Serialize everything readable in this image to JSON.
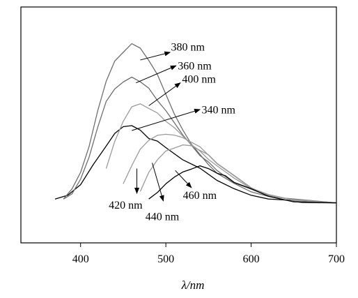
{
  "chart_data": {
    "type": "line",
    "title": "",
    "xlabel": "λ/nm",
    "ylabel": "",
    "xlim": [
      330,
      700
    ],
    "ylim": [
      0,
      1
    ],
    "grid": false,
    "legend": "none",
    "x_ticks": [
      400,
      500,
      600,
      700
    ],
    "colors": {
      "dark": "#000000",
      "mid": "#6e6e6e",
      "light": "#9a9a9a"
    },
    "series": [
      {
        "color": "#000000",
        "points": [
          [
            370,
            0.12
          ],
          [
            385,
            0.14
          ],
          [
            400,
            0.2
          ],
          [
            415,
            0.3
          ],
          [
            430,
            0.4
          ],
          [
            440,
            0.46
          ],
          [
            450,
            0.5
          ],
          [
            460,
            0.51
          ],
          [
            470,
            0.48
          ],
          [
            480,
            0.44
          ],
          [
            490,
            0.42
          ],
          [
            500,
            0.39
          ],
          [
            520,
            0.33
          ],
          [
            540,
            0.28
          ],
          [
            560,
            0.22
          ],
          [
            580,
            0.17
          ],
          [
            600,
            0.14
          ],
          [
            620,
            0.125
          ],
          [
            650,
            0.11
          ],
          [
            700,
            0.1
          ]
        ]
      },
      {
        "color": "#6e6e6e",
        "points": [
          [
            380,
            0.12
          ],
          [
            390,
            0.17
          ],
          [
            400,
            0.26
          ],
          [
            410,
            0.4
          ],
          [
            420,
            0.58
          ],
          [
            430,
            0.74
          ],
          [
            440,
            0.84
          ],
          [
            450,
            0.89
          ],
          [
            460,
            0.94
          ],
          [
            470,
            0.91
          ],
          [
            480,
            0.85
          ],
          [
            490,
            0.77
          ],
          [
            500,
            0.67
          ],
          [
            510,
            0.57
          ],
          [
            520,
            0.48
          ],
          [
            530,
            0.41
          ],
          [
            540,
            0.35
          ],
          [
            550,
            0.3
          ],
          [
            560,
            0.26
          ],
          [
            580,
            0.2
          ],
          [
            600,
            0.16
          ],
          [
            620,
            0.13
          ],
          [
            640,
            0.115
          ],
          [
            660,
            0.105
          ],
          [
            700,
            0.1
          ]
        ]
      },
      {
        "color": "#6e6e6e",
        "points": [
          [
            380,
            0.12
          ],
          [
            390,
            0.15
          ],
          [
            400,
            0.22
          ],
          [
            410,
            0.34
          ],
          [
            420,
            0.5
          ],
          [
            430,
            0.63
          ],
          [
            440,
            0.7
          ],
          [
            450,
            0.73
          ],
          [
            460,
            0.76
          ],
          [
            470,
            0.74
          ],
          [
            480,
            0.7
          ],
          [
            490,
            0.64
          ],
          [
            500,
            0.58
          ],
          [
            510,
            0.52
          ],
          [
            520,
            0.46
          ],
          [
            530,
            0.4
          ],
          [
            540,
            0.35
          ],
          [
            550,
            0.31
          ],
          [
            560,
            0.27
          ],
          [
            580,
            0.21
          ],
          [
            600,
            0.17
          ],
          [
            620,
            0.14
          ],
          [
            640,
            0.12
          ],
          [
            700,
            0.1
          ]
        ]
      },
      {
        "color": "#9a9a9a",
        "points": [
          [
            430,
            0.28
          ],
          [
            440,
            0.42
          ],
          [
            450,
            0.53
          ],
          [
            460,
            0.6
          ],
          [
            470,
            0.62
          ],
          [
            480,
            0.6
          ],
          [
            490,
            0.57
          ],
          [
            500,
            0.53
          ],
          [
            510,
            0.49
          ],
          [
            520,
            0.45
          ],
          [
            530,
            0.41
          ],
          [
            540,
            0.37
          ],
          [
            550,
            0.33
          ],
          [
            560,
            0.29
          ],
          [
            580,
            0.23
          ],
          [
            600,
            0.18
          ],
          [
            620,
            0.14
          ],
          [
            650,
            0.115
          ],
          [
            700,
            0.1
          ]
        ]
      },
      {
        "color": "#9a9a9a",
        "points": [
          [
            450,
            0.2
          ],
          [
            460,
            0.3
          ],
          [
            470,
            0.38
          ],
          [
            480,
            0.43
          ],
          [
            490,
            0.45
          ],
          [
            500,
            0.46
          ],
          [
            510,
            0.46
          ],
          [
            520,
            0.44
          ],
          [
            530,
            0.42
          ],
          [
            540,
            0.39
          ],
          [
            550,
            0.35
          ],
          [
            560,
            0.31
          ],
          [
            580,
            0.24
          ],
          [
            600,
            0.18
          ],
          [
            620,
            0.14
          ],
          [
            650,
            0.115
          ],
          [
            700,
            0.1
          ]
        ]
      },
      {
        "color": "#9a9a9a",
        "points": [
          [
            470,
            0.16
          ],
          [
            480,
            0.26
          ],
          [
            490,
            0.33
          ],
          [
            500,
            0.37
          ],
          [
            510,
            0.39
          ],
          [
            520,
            0.4
          ],
          [
            530,
            0.4
          ],
          [
            540,
            0.38
          ],
          [
            550,
            0.35
          ],
          [
            560,
            0.31
          ],
          [
            580,
            0.24
          ],
          [
            600,
            0.18
          ],
          [
            620,
            0.14
          ],
          [
            650,
            0.115
          ],
          [
            700,
            0.1
          ]
        ]
      },
      {
        "color": "#000000",
        "points": [
          [
            480,
            0.12
          ],
          [
            490,
            0.15
          ],
          [
            500,
            0.2
          ],
          [
            510,
            0.24
          ],
          [
            520,
            0.26
          ],
          [
            530,
            0.28
          ],
          [
            540,
            0.29
          ],
          [
            550,
            0.28
          ],
          [
            560,
            0.26
          ],
          [
            570,
            0.24
          ],
          [
            580,
            0.21
          ],
          [
            600,
            0.17
          ],
          [
            620,
            0.135
          ],
          [
            650,
            0.11
          ],
          [
            700,
            0.1
          ]
        ]
      }
    ],
    "annotations": [
      {
        "text": "380 nm",
        "arrow": [
          [
            470,
            0.85
          ],
          [
            505,
            0.89
          ]
        ],
        "label_at": [
          506,
          0.9
        ]
      },
      {
        "text": "360 nm",
        "arrow": [
          [
            465,
            0.73
          ],
          [
            512,
            0.82
          ]
        ],
        "label_at": [
          514,
          0.8
        ]
      },
      {
        "text": "400 nm",
        "arrow": [
          [
            480,
            0.61
          ],
          [
            517,
            0.73
          ]
        ],
        "label_at": [
          519,
          0.73
        ]
      },
      {
        "text": "340 nm",
        "arrow": [
          [
            460,
            0.48
          ],
          [
            540,
            0.59
          ]
        ],
        "label_at": [
          542,
          0.57
        ]
      },
      {
        "text": "420 nm",
        "arrow": [
          [
            466,
            0.28
          ],
          [
            466,
            0.15
          ]
        ],
        "label_at": [
          433,
          0.07
        ]
      },
      {
        "text": "440 nm",
        "arrow": [
          [
            484,
            0.31
          ],
          [
            497,
            0.11
          ]
        ],
        "label_at": [
          476,
          0.01
        ]
      },
      {
        "text": "460 nm",
        "arrow": [
          [
            511,
            0.27
          ],
          [
            530,
            0.18
          ]
        ],
        "label_at": [
          520,
          0.12
        ]
      }
    ]
  }
}
